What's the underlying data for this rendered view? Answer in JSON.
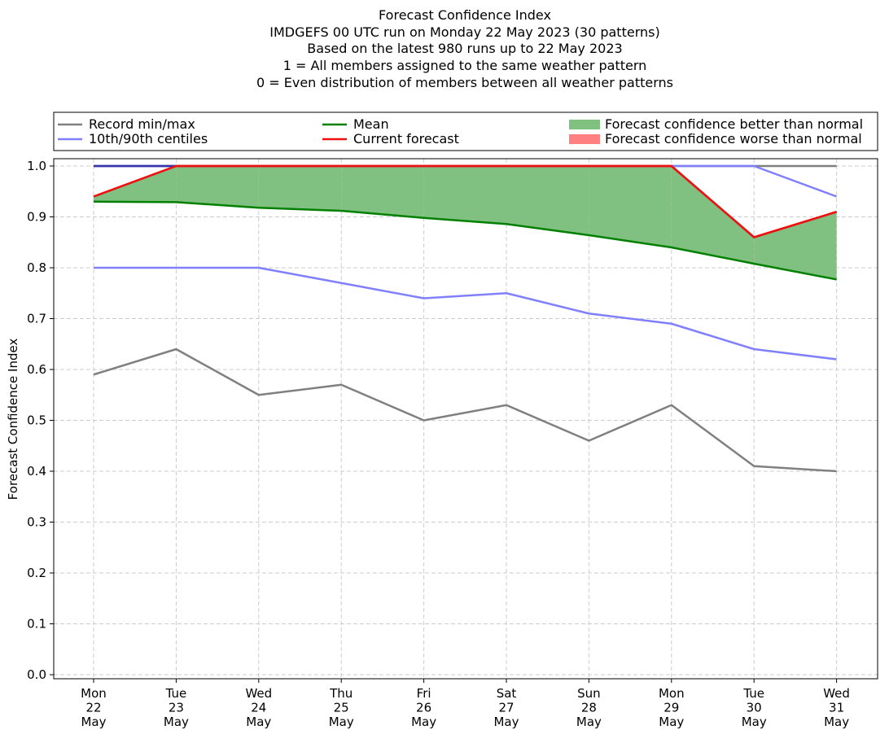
{
  "chart_data": {
    "type": "line",
    "title_lines": [
      "Forecast Confidence Index",
      "IMDGEFS 00 UTC run on Monday 22 May 2023 (30 patterns)",
      "Based on the latest 980 runs up to 22 May 2023",
      "1 = All members assigned to the same weather pattern",
      "0 = Even distribution of members between all weather patterns"
    ],
    "ylabel": "Forecast Confidence Index",
    "ylim": [
      0,
      1.0
    ],
    "yticks": [
      "0.0",
      "0.1",
      "0.2",
      "0.3",
      "0.4",
      "0.5",
      "0.6",
      "0.7",
      "0.8",
      "0.9",
      "1.0"
    ],
    "grid": true,
    "legend_position": "top",
    "categories": [
      [
        "Mon",
        "22",
        "May"
      ],
      [
        "Tue",
        "23",
        "May"
      ],
      [
        "Wed",
        "24",
        "May"
      ],
      [
        "Thu",
        "25",
        "May"
      ],
      [
        "Fri",
        "26",
        "May"
      ],
      [
        "Sat",
        "27",
        "May"
      ],
      [
        "Sun",
        "28",
        "May"
      ],
      [
        "Mon",
        "29",
        "May"
      ],
      [
        "Tue",
        "30",
        "May"
      ],
      [
        "Wed",
        "31",
        "May"
      ]
    ],
    "series": [
      {
        "key": "record_min",
        "legend_key": "record",
        "color": "#808080",
        "values": [
          0.59,
          0.64,
          0.55,
          0.57,
          0.5,
          0.53,
          0.46,
          0.53,
          0.41,
          0.4
        ]
      },
      {
        "key": "record_max",
        "legend_key": "record",
        "color": "#808080",
        "values": [
          1.0,
          1.0,
          1.0,
          1.0,
          1.0,
          1.0,
          1.0,
          1.0,
          1.0,
          1.0
        ]
      },
      {
        "key": "p10",
        "legend_key": "centiles",
        "color": "#8080ff",
        "values": [
          0.8,
          0.8,
          0.8,
          0.77,
          0.74,
          0.75,
          0.71,
          0.69,
          0.64,
          0.62
        ]
      },
      {
        "key": "p90",
        "legend_key": "centiles",
        "color": "#8080ff",
        "values": [
          1.0,
          1.0,
          1.0,
          1.0,
          1.0,
          1.0,
          1.0,
          1.0,
          1.0,
          0.94
        ]
      },
      {
        "key": "mean",
        "legend_key": "mean",
        "color": "#008000",
        "values": [
          0.93,
          0.929,
          0.918,
          0.912,
          0.898,
          0.886,
          0.864,
          0.84,
          0.808,
          0.777
        ]
      },
      {
        "key": "current",
        "legend_key": "current",
        "color": "#ee1111",
        "values": [
          0.94,
          1.0,
          1.0,
          1.0,
          1.0,
          1.0,
          1.0,
          1.0,
          0.86,
          0.91
        ]
      }
    ],
    "fills": {
      "better_color": "#80c080",
      "worse_color": "#ff8080"
    },
    "legend": {
      "record": "Record min/max",
      "centiles": "10th/90th centiles",
      "mean": "Mean",
      "current": "Current forecast",
      "better": "Forecast confidence better than normal",
      "worse": "Forecast confidence worse than normal"
    }
  }
}
